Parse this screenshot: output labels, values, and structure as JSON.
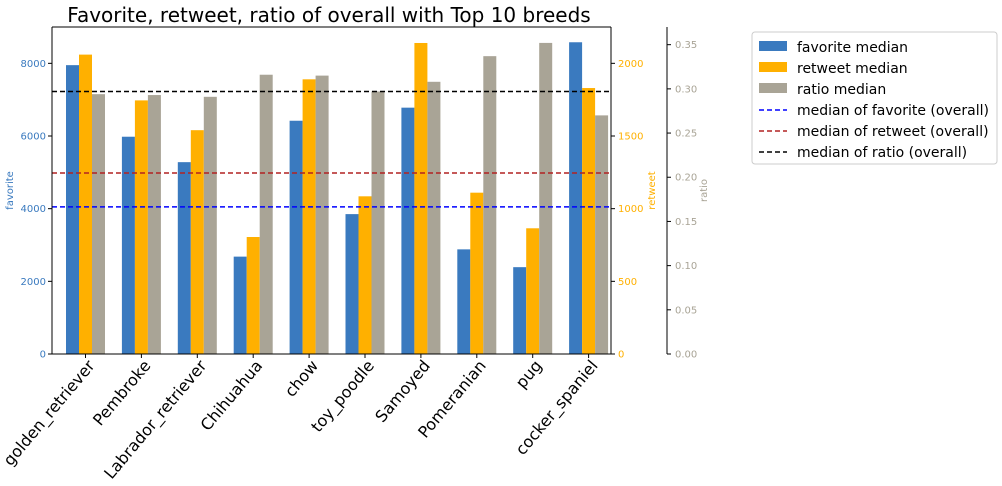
{
  "chart_data": {
    "type": "bar",
    "title": "Favorite, retweet, ratio of overall with Top 10 breeds",
    "categories": [
      "golden_retriever",
      "Pembroke",
      "Labrador_retriever",
      "Chihuahua",
      "chow",
      "toy_poodle",
      "Samoyed",
      "Pomeranian",
      "pug",
      "cocker_spaniel"
    ],
    "series": [
      {
        "name": "favorite median",
        "axis": "favorite",
        "color": "#3a7abf",
        "values": [
          7950,
          5980,
          5280,
          2680,
          6420,
          3850,
          6780,
          2880,
          2390,
          8580
        ]
      },
      {
        "name": "retweet median",
        "axis": "retweet",
        "color": "#ffb000",
        "values": [
          2060,
          1745,
          1540,
          805,
          1890,
          1085,
          2140,
          1110,
          865,
          1830
        ]
      },
      {
        "name": "ratio median",
        "axis": "ratio",
        "color": "#a9a496",
        "values": [
          0.294,
          0.293,
          0.291,
          0.316,
          0.315,
          0.297,
          0.308,
          0.337,
          0.352,
          0.27
        ]
      }
    ],
    "reference_lines": [
      {
        "name": "median of favorite (overall)",
        "axis": "favorite",
        "value": 4050,
        "color": "#0000ff"
      },
      {
        "name": "median of retweet (overall)",
        "axis": "retweet",
        "value": 1245,
        "color": "#b22222"
      },
      {
        "name": "median of ratio (overall)",
        "axis": "ratio",
        "value": 0.297,
        "color": "#000000"
      }
    ],
    "axes": {
      "favorite": {
        "label": "favorite",
        "color": "#3a7abf",
        "ylim": [
          0,
          9000
        ],
        "ticks": [
          0,
          2000,
          4000,
          6000,
          8000
        ]
      },
      "retweet": {
        "label": "retweet",
        "color": "#ffb000",
        "ylim": [
          0,
          2250
        ],
        "ticks": [
          0,
          500,
          1000,
          1500,
          2000
        ]
      },
      "ratio": {
        "label": "ratio",
        "color": "#a9a496",
        "ylim": [
          0,
          0.37
        ],
        "ticks": [
          "0.00",
          "0.05",
          "0.10",
          "0.15",
          "0.20",
          "0.25",
          "0.30",
          "0.35"
        ]
      }
    },
    "legend": {
      "placement": "outside-right",
      "entries": [
        "favorite median",
        "retweet median",
        "ratio median",
        "median of favorite (overall)",
        "median of retweet (overall)",
        "median of ratio (overall)"
      ]
    },
    "grid": false
  }
}
